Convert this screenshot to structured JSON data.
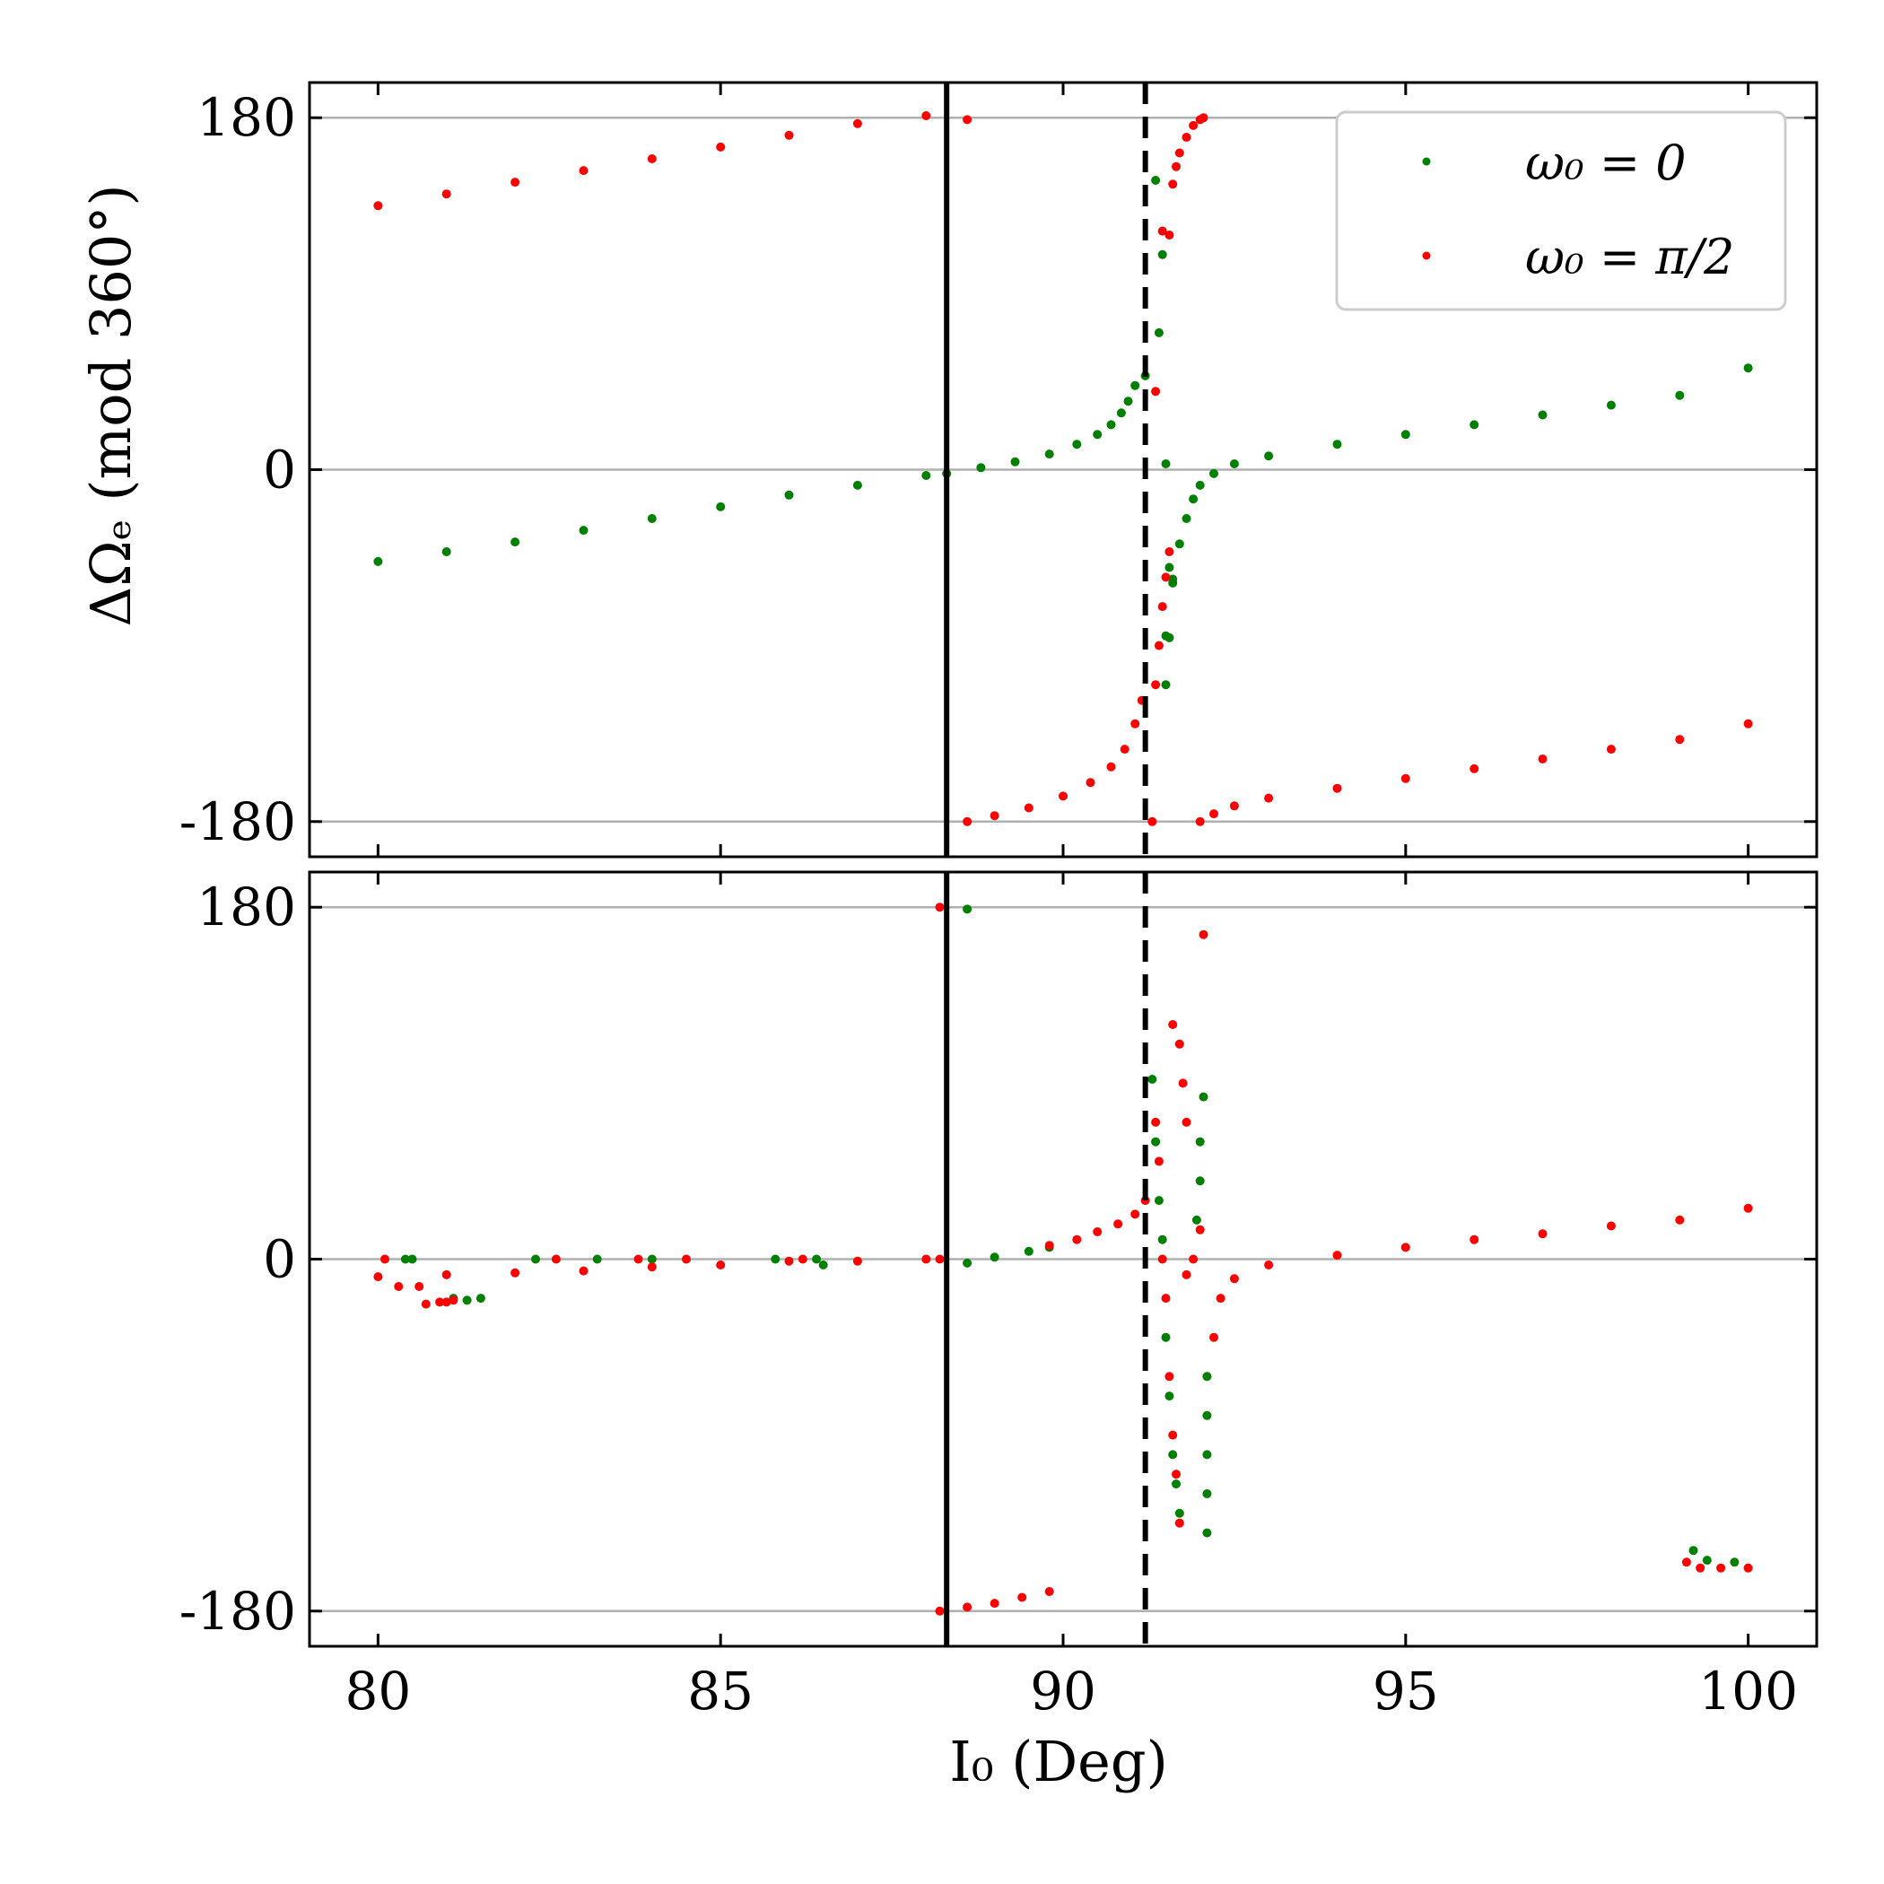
{
  "chart_data": {
    "type": "scatter",
    "xlabel": "I₀ (Deg)",
    "ylabel": "ΔΩₑ (mod 360°)",
    "xlim": [
      79,
      101
    ],
    "ylim": [
      -198,
      198
    ],
    "xticks": [
      80,
      85,
      90,
      95,
      100
    ],
    "yticks": [
      -180,
      0,
      180
    ],
    "grid_y": [
      -180,
      0,
      180
    ],
    "vertical_lines": [
      {
        "x": 88.3,
        "style": "solid"
      },
      {
        "x": 91.2,
        "style": "dashed"
      }
    ],
    "legend": {
      "placement": "top-right",
      "entries": [
        {
          "label": "ω₀ = 0",
          "color": "#008000"
        },
        {
          "label": "ω₀ = π/2",
          "color": "#ff0000"
        }
      ]
    },
    "panels": [
      {
        "name": "top",
        "series": [
          {
            "label": "ω₀ = 0",
            "color": "#008000",
            "points": [
              [
                80.0,
                -47
              ],
              [
                81.0,
                -42
              ],
              [
                82.0,
                -37
              ],
              [
                83.0,
                -31
              ],
              [
                84.0,
                -25
              ],
              [
                85.0,
                -19
              ],
              [
                86.0,
                -13
              ],
              [
                87.0,
                -8
              ],
              [
                88.0,
                -3
              ],
              [
                88.3,
                -2
              ],
              [
                88.8,
                1
              ],
              [
                89.3,
                4
              ],
              [
                89.8,
                8
              ],
              [
                90.2,
                13
              ],
              [
                90.5,
                18
              ],
              [
                90.7,
                23
              ],
              [
                90.85,
                29
              ],
              [
                90.95,
                35
              ],
              [
                91.05,
                43
              ],
              [
                91.2,
                48
              ],
              [
                91.35,
                148
              ],
              [
                91.45,
                110
              ],
              [
                91.4,
                70
              ],
              [
                91.5,
                3
              ],
              [
                91.55,
                -50
              ],
              [
                91.6,
                -58
              ],
              [
                91.5,
                -85
              ],
              [
                91.5,
                -110
              ],
              [
                91.55,
                -86
              ],
              [
                91.6,
                -56
              ],
              [
                91.7,
                -38
              ],
              [
                91.8,
                -25
              ],
              [
                91.9,
                -15
              ],
              [
                92.0,
                -8
              ],
              [
                92.2,
                -2
              ],
              [
                92.5,
                3
              ],
              [
                93.0,
                7
              ],
              [
                94.0,
                13
              ],
              [
                95.0,
                18
              ],
              [
                96.0,
                23
              ],
              [
                97.0,
                28
              ],
              [
                98.0,
                33
              ],
              [
                99.0,
                38
              ],
              [
                100.0,
                52
              ]
            ]
          },
          {
            "label": "ω₀ = π/2",
            "color": "#ff0000",
            "points": [
              [
                80.0,
                135
              ],
              [
                81.0,
                141
              ],
              [
                82.0,
                147
              ],
              [
                83.0,
                153
              ],
              [
                84.0,
                159
              ],
              [
                85.0,
                165
              ],
              [
                86.0,
                171
              ],
              [
                87.0,
                177
              ],
              [
                88.0,
                181
              ],
              [
                88.6,
                179
              ],
              [
                88.6,
                -180
              ],
              [
                89.0,
                -177
              ],
              [
                89.5,
                -173
              ],
              [
                90.0,
                -167
              ],
              [
                90.4,
                -160
              ],
              [
                90.7,
                -152
              ],
              [
                90.9,
                -143
              ],
              [
                91.05,
                -130
              ],
              [
                91.15,
                -118
              ],
              [
                91.3,
                -180
              ],
              [
                91.35,
                -110
              ],
              [
                91.4,
                -90
              ],
              [
                91.45,
                -70
              ],
              [
                91.5,
                -55
              ],
              [
                91.55,
                -42
              ],
              [
                91.35,
                40
              ],
              [
                91.45,
                122
              ],
              [
                91.55,
                120
              ],
              [
                91.6,
                146
              ],
              [
                91.65,
                155
              ],
              [
                91.7,
                162
              ],
              [
                91.8,
                170
              ],
              [
                91.9,
                176
              ],
              [
                92.0,
                179
              ],
              [
                92.05,
                180
              ],
              [
                92.0,
                -180
              ],
              [
                92.2,
                -176
              ],
              [
                92.5,
                -172
              ],
              [
                93.0,
                -168
              ],
              [
                94.0,
                -163
              ],
              [
                95.0,
                -158
              ],
              [
                96.0,
                -153
              ],
              [
                97.0,
                -148
              ],
              [
                98.0,
                -143
              ],
              [
                99.0,
                -138
              ],
              [
                100.0,
                -130
              ]
            ]
          }
        ]
      },
      {
        "name": "bottom",
        "series": [
          {
            "label": "ω₀ = 0",
            "color": "#008000",
            "points": [
              [
                80.4,
                0
              ],
              [
                80.5,
                0
              ],
              [
                81.1,
                -20
              ],
              [
                81.3,
                -21
              ],
              [
                81.5,
                -20
              ],
              [
                82.3,
                0
              ],
              [
                83.2,
                0
              ],
              [
                84.0,
                0
              ],
              [
                85.8,
                0
              ],
              [
                86.4,
                0
              ],
              [
                86.5,
                -3
              ],
              [
                88.6,
                179
              ],
              [
                88.6,
                -2
              ],
              [
                89.0,
                1
              ],
              [
                89.5,
                4
              ],
              [
                89.8,
                6
              ],
              [
                91.3,
                92
              ],
              [
                91.35,
                60
              ],
              [
                91.4,
                30
              ],
              [
                91.45,
                10
              ],
              [
                91.5,
                -40
              ],
              [
                91.55,
                -70
              ],
              [
                91.6,
                -100
              ],
              [
                91.65,
                -115
              ],
              [
                91.7,
                -130
              ],
              [
                92.05,
                83
              ],
              [
                92.0,
                60
              ],
              [
                92.0,
                40
              ],
              [
                91.95,
                20
              ],
              [
                92.1,
                -60
              ],
              [
                92.1,
                -80
              ],
              [
                92.1,
                -100
              ],
              [
                92.1,
                -120
              ],
              [
                92.1,
                -140
              ],
              [
                99.2,
                -149
              ],
              [
                99.4,
                -154
              ],
              [
                99.8,
                -155
              ]
            ]
          },
          {
            "label": "ω₀ = π/2",
            "color": "#ff0000",
            "points": [
              [
                80.0,
                -9
              ],
              [
                81.0,
                -8
              ],
              [
                82.0,
                -7
              ],
              [
                83.0,
                -6
              ],
              [
                84.0,
                -4
              ],
              [
                85.0,
                -3
              ],
              [
                86.0,
                -1
              ],
              [
                87.0,
                -1
              ],
              [
                88.0,
                0
              ],
              [
                88.2,
                0
              ],
              [
                80.1,
                0
              ],
              [
                80.3,
                -14
              ],
              [
                80.6,
                -14
              ],
              [
                80.7,
                -23
              ],
              [
                80.9,
                -22
              ],
              [
                81.0,
                -22
              ],
              [
                81.1,
                -21
              ],
              [
                82.6,
                0
              ],
              [
                83.8,
                0
              ],
              [
                84.5,
                0
              ],
              [
                86.2,
                0
              ],
              [
                88.2,
                180
              ],
              [
                88.2,
                -180
              ],
              [
                88.6,
                -178
              ],
              [
                89.0,
                -176
              ],
              [
                89.4,
                -173
              ],
              [
                89.8,
                -170
              ],
              [
                89.8,
                7
              ],
              [
                90.2,
                10
              ],
              [
                90.5,
                14
              ],
              [
                90.8,
                18
              ],
              [
                91.05,
                23
              ],
              [
                91.2,
                30
              ],
              [
                91.35,
                70
              ],
              [
                91.4,
                50
              ],
              [
                91.45,
                0
              ],
              [
                91.5,
                -20
              ],
              [
                91.55,
                -60
              ],
              [
                91.6,
                -90
              ],
              [
                91.65,
                -110
              ],
              [
                91.7,
                -135
              ],
              [
                91.6,
                120
              ],
              [
                91.7,
                110
              ],
              [
                91.75,
                90
              ],
              [
                91.8,
                70
              ],
              [
                91.8,
                -8
              ],
              [
                91.9,
                0
              ],
              [
                92.0,
                15
              ],
              [
                92.05,
                166
              ],
              [
                92.2,
                -40
              ],
              [
                92.3,
                -20
              ],
              [
                92.5,
                -10
              ],
              [
                93.0,
                -3
              ],
              [
                94.0,
                2
              ],
              [
                95.0,
                6
              ],
              [
                96.0,
                10
              ],
              [
                97.0,
                13
              ],
              [
                98.0,
                17
              ],
              [
                99.0,
                20
              ],
              [
                100.0,
                26
              ],
              [
                99.1,
                -155
              ],
              [
                99.3,
                -158
              ],
              [
                99.6,
                -158
              ],
              [
                100.0,
                -158
              ]
            ]
          }
        ]
      }
    ]
  }
}
